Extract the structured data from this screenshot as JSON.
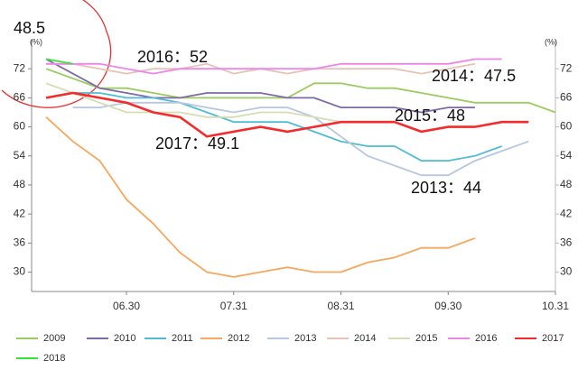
{
  "chart_data": {
    "type": "line",
    "y_label": "(%)",
    "categories": [
      null,
      null,
      null,
      "06.30",
      null,
      null,
      null,
      "07.31",
      null,
      null,
      null,
      "08.31",
      null,
      null,
      null,
      "09.30",
      null,
      null,
      null,
      "10.31"
    ],
    "ylim": [
      26,
      78
    ],
    "yticks": [
      30,
      36,
      42,
      48,
      54,
      60,
      66,
      72
    ],
    "annotations": [
      "48.5",
      "2016：52",
      "2014：47.5",
      "2015：48",
      "2017：49.1",
      "2013：44"
    ],
    "series": [
      {
        "name": "2009",
        "color": "#9ccc5e",
        "values": [
          72,
          70,
          68,
          68,
          67,
          66,
          66,
          66,
          66,
          66,
          69,
          69,
          68,
          68,
          67,
          66,
          65,
          65,
          65,
          63
        ]
      },
      {
        "name": "2010",
        "color": "#7f6aa8",
        "values": [
          74,
          71,
          68,
          67,
          66,
          66,
          67,
          67,
          67,
          66,
          66,
          64,
          64,
          64,
          63,
          64,
          64,
          null,
          null,
          null
        ]
      },
      {
        "name": "2011",
        "color": "#4fbcd6",
        "values": [
          null,
          67,
          67,
          66,
          66,
          65,
          63,
          61,
          61,
          61,
          59,
          57,
          56,
          56,
          53,
          53,
          54,
          56,
          null,
          null
        ]
      },
      {
        "name": "2012",
        "color": "#f5a85e",
        "values": [
          62,
          57,
          53,
          45,
          40,
          34,
          30,
          29,
          30,
          31,
          30,
          30,
          32,
          33,
          35,
          35,
          37,
          null,
          null,
          null
        ]
      },
      {
        "name": "2013",
        "color": "#b8c6e0",
        "values": [
          null,
          64,
          64,
          65,
          65,
          65,
          64,
          63,
          64,
          64,
          62,
          58,
          54,
          52,
          50,
          50,
          53,
          55,
          57,
          null
        ]
      },
      {
        "name": "2014",
        "color": "#e6c3b6",
        "values": [
          73,
          73,
          72,
          71,
          72,
          72,
          73,
          71,
          72,
          71,
          72,
          72,
          72,
          72,
          71,
          72,
          73,
          null,
          null,
          null
        ]
      },
      {
        "name": "2015",
        "color": "#d6dcb4",
        "values": [
          69,
          67,
          65,
          63,
          63,
          63,
          62,
          62,
          63,
          63,
          62,
          61,
          61,
          61,
          null,
          null,
          null,
          null,
          null,
          null
        ]
      },
      {
        "name": "2016",
        "color": "#ee86ea",
        "values": [
          73,
          73,
          73,
          72,
          71,
          72,
          72,
          72,
          72,
          72,
          72,
          73,
          73,
          73,
          73,
          73,
          74,
          74,
          null,
          null
        ]
      },
      {
        "name": "2017",
        "color": "#f52a2a",
        "values": [
          66,
          67,
          66,
          65,
          63,
          62,
          58,
          59,
          60,
          59,
          60,
          61,
          61,
          61,
          59,
          60,
          60,
          61,
          61,
          null
        ]
      },
      {
        "name": "2018",
        "color": "#33e633",
        "values": [
          74,
          73,
          null,
          null,
          null,
          null,
          null,
          null,
          null,
          null,
          null,
          null,
          null,
          null,
          null,
          null,
          null,
          null,
          null,
          null
        ]
      }
    ]
  }
}
